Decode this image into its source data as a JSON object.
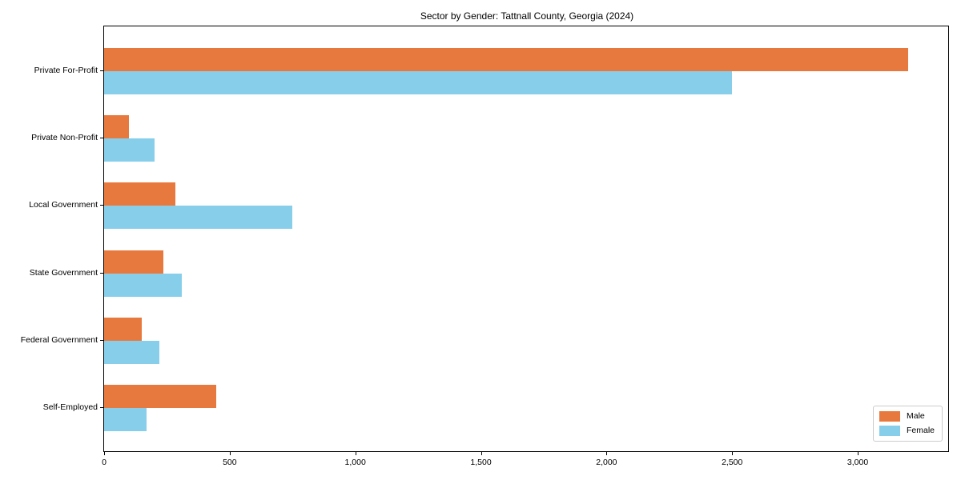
{
  "chart_data": {
    "type": "bar",
    "orientation": "horizontal",
    "title": "Sector by Gender: Tattnall County, Georgia (2024)",
    "categories": [
      "Private For-Profit",
      "Private Non-Profit",
      "Local Government",
      "State Government",
      "Federal Government",
      "Self-Employed"
    ],
    "series": [
      {
        "name": "Male",
        "color": "#e8793e",
        "values": [
          3200,
          100,
          285,
          235,
          150,
          445
        ]
      },
      {
        "name": "Female",
        "color": "#87ceeb",
        "values": [
          2500,
          200,
          750,
          310,
          220,
          170
        ]
      }
    ],
    "xlabel": "",
    "ylabel": "",
    "xlim": [
      0,
      3360
    ],
    "xticks": [
      {
        "value": 0,
        "label": "0"
      },
      {
        "value": 500,
        "label": "500"
      },
      {
        "value": 1000,
        "label": "1,000"
      },
      {
        "value": 1500,
        "label": "1,500"
      },
      {
        "value": 2000,
        "label": "2,000"
      },
      {
        "value": 2500,
        "label": "2,500"
      },
      {
        "value": 3000,
        "label": "3,000"
      }
    ],
    "grid": false,
    "legend_position": "lower right"
  },
  "colors": {
    "male": "#e8793e",
    "female": "#87ceeb",
    "spine": "#000000",
    "legend_border": "#cccccc",
    "background": "#ffffff"
  }
}
